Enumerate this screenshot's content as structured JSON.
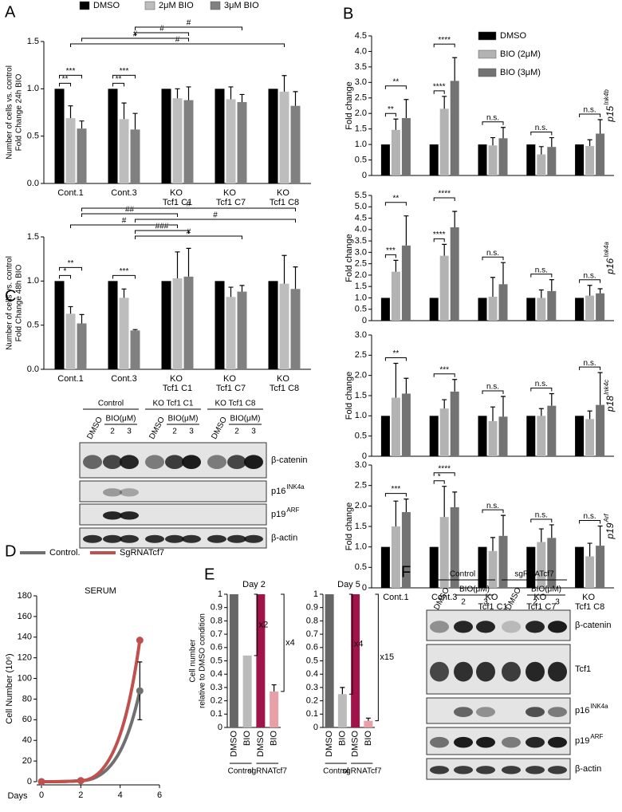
{
  "chart_data": [
    {
      "type": "bar",
      "panel": "A",
      "legend": "top",
      "ylabel": [
        "Number of cells vs. control",
        "Fold Change 24h BIO"
      ],
      "categories": [
        "Cont.1",
        "Cont.3",
        "KO Tcf1 C1",
        "KO Tcf1 C7",
        "KO Tcf1 C8"
      ],
      "series": [
        {
          "name": "DMSO",
          "color": "#000000",
          "values": [
            1,
            1,
            1,
            1,
            1
          ]
        },
        {
          "name": "2μM BIO",
          "color": "#bdbdbd",
          "values": [
            0.69,
            0.68,
            0.9,
            0.89,
            0.97
          ],
          "errors": [
            0.13,
            0.17,
            0.1,
            0.13,
            0.17
          ]
        },
        {
          "name": "3μM BIO",
          "color": "#808080",
          "values": [
            0.58,
            0.57,
            0.88,
            0.86,
            0.82
          ],
          "errors": [
            0.08,
            0.17,
            0.14,
            0.08,
            0.15
          ]
        }
      ],
      "ylim": [
        0,
        1.5
      ],
      "yticks": [
        {
          "value": 0,
          "label": "0.0"
        },
        0.5,
        {
          "value": 1,
          "label": "1.0"
        },
        1.5
      ],
      "annotations": [
        {
          "label": "**",
          "from": [
            0,
            0
          ],
          "to": [
            0,
            1
          ]
        },
        {
          "label": "***",
          "from": [
            0,
            0
          ],
          "to": [
            0,
            2
          ]
        },
        {
          "label": "**",
          "from": [
            1,
            0
          ],
          "to": [
            1,
            1
          ]
        },
        {
          "label": "***",
          "from": [
            1,
            0
          ],
          "to": [
            1,
            2
          ]
        },
        {
          "label": "#",
          "from": [
            1,
            2
          ],
          "to": [
            3,
            2
          ]
        },
        {
          "label": "#",
          "from": [
            1,
            2
          ],
          "to": [
            2,
            2
          ]
        },
        {
          "label": "#",
          "from": [
            0,
            2
          ],
          "to": [
            2,
            2
          ]
        },
        {
          "label": "#",
          "from": [
            0,
            1
          ],
          "to": [
            4,
            1
          ]
        }
      ]
    },
    {
      "type": "bar",
      "ylabel": [
        "Number of cells vs. control",
        "Fold Change 48h BIO"
      ],
      "categories": [
        "Cont.1",
        "Cont.3",
        "KO Tcf1 C1",
        "KO Tcf1 C7",
        "KO Tcf1 C8"
      ],
      "series": [
        {
          "color": "#000000",
          "values": [
            1,
            1,
            1,
            1,
            1
          ]
        },
        {
          "color": "#bdbdbd",
          "values": [
            0.63,
            0.81,
            1.03,
            0.82,
            0.97
          ],
          "errors": [
            0.08,
            0.1,
            0.3,
            0.11,
            0.32
          ]
        },
        {
          "color": "#808080",
          "values": [
            0.52,
            0.44,
            1.05,
            0.88,
            0.91
          ],
          "errors": [
            0.1,
            0.01,
            0.32,
            0.07,
            0.25
          ]
        }
      ],
      "ylim": [
        0,
        1.5
      ],
      "yticks": [
        {
          "value": 0,
          "label": "0.0"
        },
        0.5,
        {
          "value": 1,
          "label": "1.0"
        },
        1.5
      ],
      "annotations": [
        {
          "label": "*",
          "from": [
            0,
            0
          ],
          "to": [
            0,
            1
          ]
        },
        {
          "label": "**",
          "from": [
            0,
            0
          ],
          "to": [
            0,
            2
          ]
        },
        {
          "label": "***",
          "from": [
            1,
            0
          ],
          "to": [
            1,
            2
          ]
        },
        {
          "label": "#",
          "from": [
            0,
            2
          ],
          "to": [
            4,
            2
          ]
        },
        {
          "label": "##",
          "from": [
            0,
            2
          ],
          "to": [
            2,
            1
          ]
        },
        {
          "label": "#",
          "from": [
            1,
            2
          ],
          "to": [
            4,
            2
          ]
        },
        {
          "label": "#",
          "from": [
            0,
            1
          ],
          "to": [
            2,
            1
          ]
        },
        {
          "label": "###",
          "from": [
            1,
            2
          ],
          "to": [
            2,
            2
          ]
        },
        {
          "label": "#",
          "from": [
            1,
            2
          ],
          "to": [
            3,
            2
          ]
        }
      ]
    },
    {
      "type": "bar",
      "panel": "B",
      "legend": "upper right",
      "ylabel": "Fold change",
      "gene": {
        "name": "p15",
        "sup": "Ink4b"
      },
      "series": [
        {
          "name": "DMSO",
          "color": "#000000",
          "values": [
            1,
            1,
            1,
            1,
            1
          ]
        },
        {
          "name": "BIO (2μM)",
          "color": "#b3b3b3",
          "values": [
            1.47,
            2.15,
            0.97,
            0.68,
            0.95
          ],
          "errors": [
            0.35,
            0.4,
            0.25,
            0.25,
            0.2
          ]
        },
        {
          "name": "BIO (3μM)",
          "color": "#737373",
          "values": [
            1.85,
            3.05,
            1.2,
            0.92,
            1.35
          ],
          "errors": [
            0.6,
            0.75,
            0.35,
            0.3,
            0.45
          ]
        }
      ],
      "ylim": [
        0,
        4.5
      ],
      "yticks": [
        0,
        0.5,
        {
          "value": 1,
          "label": "1.0"
        },
        1.5,
        {
          "value": 2,
          "label": "2.0"
        },
        2.5,
        {
          "value": 3,
          "label": "3.0"
        },
        3.5,
        {
          "value": 4,
          "label": "4.0"
        },
        4.5
      ],
      "annotations": [
        {
          "label": "**",
          "from": [
            0,
            0
          ],
          "to": [
            0,
            1
          ]
        },
        {
          "label": "**",
          "from": [
            0,
            0
          ],
          "to": [
            0,
            2
          ]
        },
        {
          "label": "****",
          "from": [
            1,
            0
          ],
          "to": [
            1,
            1
          ]
        },
        {
          "label": "****",
          "from": [
            1,
            0
          ],
          "to": [
            1,
            2
          ]
        },
        {
          "label": "n.s.",
          "from": [
            2,
            0
          ],
          "to": [
            2,
            2
          ]
        },
        {
          "label": "n.s.",
          "from": [
            3,
            0
          ],
          "to": [
            3,
            2
          ]
        },
        {
          "label": "n.s.",
          "from": [
            4,
            0
          ],
          "to": [
            4,
            2
          ]
        }
      ]
    },
    {
      "type": "bar",
      "ylabel": "Fold change",
      "gene": {
        "name": "p16",
        "sup": "Ink4a"
      },
      "series": [
        {
          "color": "#000000",
          "values": [
            1,
            1,
            1,
            1,
            1
          ]
        },
        {
          "color": "#b3b3b3",
          "values": [
            2.15,
            2.85,
            1.05,
            1.0,
            1.1
          ],
          "errors": [
            0.5,
            0.5,
            0.85,
            0.35,
            0.45
          ]
        },
        {
          "color": "#737373",
          "values": [
            3.3,
            4.1,
            1.6,
            1.3,
            1.2
          ],
          "errors": [
            1.3,
            0.7,
            0.95,
            0.5,
            0.2
          ]
        }
      ],
      "ylim": [
        0,
        5.5
      ],
      "yticks": [
        0,
        0.5,
        {
          "value": 1,
          "label": "1.0"
        },
        1.5,
        {
          "value": 2,
          "label": "2.0"
        },
        2.5,
        {
          "value": 3,
          "label": "3.0"
        },
        3.5,
        {
          "value": 4,
          "label": "4.0"
        },
        4.5,
        {
          "value": 5,
          "label": "5.0"
        },
        5.5
      ],
      "annotations": [
        {
          "label": "***",
          "from": [
            0,
            0
          ],
          "to": [
            0,
            1
          ]
        },
        {
          "label": "**",
          "from": [
            0,
            0
          ],
          "to": [
            0,
            2
          ]
        },
        {
          "label": "****",
          "from": [
            1,
            0
          ],
          "to": [
            1,
            1
          ]
        },
        {
          "label": "****",
          "from": [
            1,
            0
          ],
          "to": [
            1,
            2
          ]
        },
        {
          "label": "n.s.",
          "from": [
            2,
            0
          ],
          "to": [
            2,
            2
          ]
        },
        {
          "label": "n.s.",
          "from": [
            3,
            0
          ],
          "to": [
            3,
            2
          ]
        },
        {
          "label": "n.s.",
          "from": [
            4,
            0
          ],
          "to": [
            4,
            2
          ]
        }
      ]
    },
    {
      "type": "bar",
      "ylabel": "Fold change",
      "gene": {
        "name": "p18",
        "sup": "Ink4c"
      },
      "series": [
        {
          "color": "#000000",
          "values": [
            1,
            1,
            1,
            1,
            1
          ]
        },
        {
          "color": "#b3b3b3",
          "values": [
            1.45,
            1.18,
            0.87,
            1.0,
            0.92
          ],
          "errors": [
            0.85,
            0.22,
            0.35,
            0.18,
            0.2
          ]
        },
        {
          "color": "#737373",
          "values": [
            1.55,
            1.6,
            0.98,
            1.25,
            1.27
          ],
          "errors": [
            0.38,
            0.3,
            0.5,
            0.3,
            0.8
          ]
        }
      ],
      "ylim": [
        0,
        3
      ],
      "yticks": [
        0,
        0.5,
        {
          "value": 1,
          "label": "1.0"
        },
        1.5,
        {
          "value": 2,
          "label": "2.0"
        },
        2.5,
        {
          "value": 3,
          "label": "3.0"
        }
      ],
      "annotations": [
        {
          "label": "**",
          "from": [
            0,
            0
          ],
          "to": [
            0,
            2
          ]
        },
        {
          "label": "***",
          "from": [
            1,
            0
          ],
          "to": [
            1,
            2
          ]
        },
        {
          "label": "n.s.",
          "from": [
            2,
            0
          ],
          "to": [
            2,
            2
          ]
        },
        {
          "label": "n.s.",
          "from": [
            3,
            0
          ],
          "to": [
            3,
            2
          ]
        },
        {
          "label": "n.s.",
          "from": [
            4,
            0
          ],
          "to": [
            4,
            2
          ]
        }
      ]
    },
    {
      "type": "bar",
      "ylabel": "Fold change",
      "gene": {
        "name": "p19",
        "sup": "Arf"
      },
      "categories": [
        "Cont.1",
        "Cont.3",
        "KO Tcf1 C1",
        "KO Tcf1 C7",
        "KO Tcf1 C8"
      ],
      "series": [
        {
          "color": "#000000",
          "values": [
            1,
            1,
            1,
            1,
            1
          ]
        },
        {
          "color": "#b3b3b3",
          "values": [
            1.5,
            1.73,
            0.9,
            1.12,
            0.77
          ],
          "errors": [
            0.62,
            0.75,
            0.33,
            0.32,
            0.32
          ]
        },
        {
          "color": "#737373",
          "values": [
            1.85,
            1.97,
            1.27,
            1.22,
            1.03
          ],
          "errors": [
            0.32,
            0.37,
            0.5,
            0.32,
            0.48
          ]
        }
      ],
      "ylim": [
        0,
        3
      ],
      "yticks": [
        0,
        0.5,
        {
          "value": 1,
          "label": "1.0"
        },
        1.5,
        {
          "value": 2,
          "label": "2.0"
        },
        2.5,
        {
          "value": 3,
          "label": "3.0"
        }
      ],
      "annotations": [
        {
          "label": "***",
          "from": [
            0,
            0
          ],
          "to": [
            0,
            2
          ]
        },
        {
          "label": "*",
          "from": [
            1,
            0
          ],
          "to": [
            1,
            1
          ]
        },
        {
          "label": "****",
          "from": [
            1,
            0
          ],
          "to": [
            1,
            2
          ]
        },
        {
          "label": "n.s.",
          "from": [
            2,
            0
          ],
          "to": [
            2,
            2
          ]
        },
        {
          "label": "n.s.",
          "from": [
            3,
            0
          ],
          "to": [
            3,
            2
          ]
        },
        {
          "label": "n.s.",
          "from": [
            4,
            0
          ],
          "to": [
            4,
            2
          ]
        }
      ]
    },
    {
      "type": "line",
      "panel": "D",
      "title": "SERUM",
      "xlabel": "Days",
      "ylabel": "Cell Number (10⁶)",
      "legend": "top",
      "x": [
        0,
        2,
        5
      ],
      "series": [
        {
          "name": "Control.",
          "color": "#707070",
          "values": [
            0,
            1,
            88
          ],
          "errors": [
            null,
            null,
            28
          ]
        },
        {
          "name": "SgRNATcf7",
          "color": "#c0504d",
          "values": [
            0,
            1,
            137
          ]
        }
      ],
      "xlim": [
        0,
        6
      ],
      "xticks": [
        0,
        2,
        4,
        6
      ],
      "ylim": [
        0,
        180
      ],
      "yticks": [
        0,
        20,
        40,
        60,
        80,
        100,
        120,
        140,
        160,
        180
      ]
    },
    {
      "type": "bar",
      "panel": "E",
      "title": "Day 2",
      "ylabel": [
        "Cell number",
        "relative to DMSO condition"
      ],
      "categories": [
        "DMSO",
        "BIO",
        "DMSO",
        "BIO"
      ],
      "groups": [
        "Control",
        "sgRNATcf7"
      ],
      "values": [
        1,
        0.54,
        1,
        0.27
      ],
      "errors": [
        null,
        null,
        null,
        0.05
      ],
      "colors": [
        "#666666",
        "#bbbbbb",
        "#a0144a",
        "#e8a0a8"
      ],
      "ylim": [
        0,
        1
      ],
      "yticks": [
        0,
        0.1,
        0.2,
        0.3,
        0.4,
        0.5,
        0.6,
        0.7,
        0.8,
        0.9,
        1
      ],
      "annotations": [
        {
          "label": "x2",
          "from": 0,
          "to": 1
        },
        {
          "label": "x4",
          "from": 0,
          "to": 3
        }
      ]
    },
    {
      "type": "bar",
      "title": "Day 5",
      "categories": [
        "DMSO",
        "BIO",
        "DMSO",
        "BIO"
      ],
      "groups": [
        "Control",
        "sgRNATcf7"
      ],
      "values": [
        1,
        0.25,
        1,
        0.05
      ],
      "errors": [
        null,
        0.05,
        null,
        0.02
      ],
      "colors": [
        "#666666",
        "#bbbbbb",
        "#a0144a",
        "#e8a0a8"
      ],
      "ylim": [
        0,
        1
      ],
      "yticks": [
        0,
        0.1,
        0.2,
        0.3,
        0.4,
        0.5,
        0.6,
        0.7,
        0.8,
        0.9,
        1
      ],
      "annotations": [
        {
          "label": "x4",
          "from": 0,
          "to": 1
        },
        {
          "label": "x15",
          "from": 0,
          "to": 3
        }
      ]
    }
  ],
  "blots": [
    {
      "panel": "C",
      "groups": [
        "Control",
        "KO Tcf1 C1",
        "KO Tcf1 C8"
      ],
      "lanes": [
        "DMSO",
        "BIO(μM)",
        "2",
        "3"
      ],
      "rows": [
        {
          "name": "β-catenin"
        },
        {
          "name": "p16",
          "sup": "INK4a"
        },
        {
          "name": "p19",
          "sup": "ARF"
        },
        {
          "name": "β-actin"
        }
      ]
    },
    {
      "panel": "F",
      "groups": [
        "Control",
        "sgRNATcf7"
      ],
      "lanes": [
        "DMSO",
        "BIO(μM)",
        "2",
        "3"
      ],
      "rows": [
        {
          "name": "β-catenin"
        },
        {
          "name": "Tcf1"
        },
        {
          "name": "p16",
          "sup": "INK4a"
        },
        {
          "name": "p19",
          "sup": "ARF"
        },
        {
          "name": "β-actin"
        }
      ]
    }
  ]
}
